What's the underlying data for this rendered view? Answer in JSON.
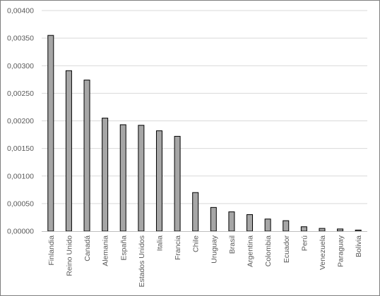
{
  "chart_data": {
    "type": "bar",
    "title": "",
    "xlabel": "",
    "ylabel": "",
    "ylim": [
      0,
      0.004
    ],
    "y_tick_step": 0.0005,
    "y_tick_labels": [
      "0,00000",
      "0,00050",
      "0,00100",
      "0,00150",
      "0,00200",
      "0,00250",
      "0,00300",
      "0,00350",
      "0,00400"
    ],
    "grid": true,
    "legend": "none",
    "bar_color": "#a6a6a6",
    "bar_edge_color": "#000000",
    "categories": [
      "Finlandia",
      "Reino Unido",
      "Canadá",
      "Alemania",
      "España",
      "Estados Unidos",
      "Italia",
      "Francia",
      "Chile",
      "Uruguay",
      "Brasil",
      "Argentina",
      "Colombia",
      "Ecuador",
      "Perú",
      "Venezuela",
      "Paraguay",
      "Bolivia"
    ],
    "values": [
      0.00355,
      0.00291,
      0.00274,
      0.00205,
      0.00193,
      0.00192,
      0.00182,
      0.00172,
      0.0007,
      0.00043,
      0.00035,
      0.0003,
      0.00022,
      0.00019,
      8e-05,
      5e-05,
      4e-05,
      2e-05
    ]
  }
}
